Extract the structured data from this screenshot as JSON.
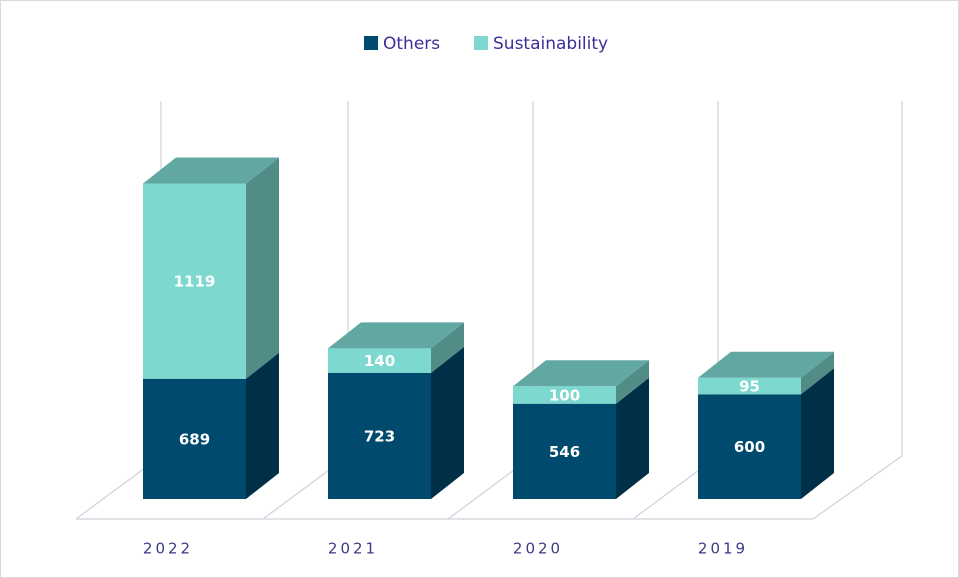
{
  "chart_data": {
    "type": "bar3d_stacked",
    "categories": [
      "2022",
      "2021",
      "2020",
      "2019"
    ],
    "series": [
      {
        "name": "Others",
        "color": "#004a6e",
        "values": [
          689,
          723,
          546,
          600
        ]
      },
      {
        "name": "Sustainability",
        "color": "#7dd8d0",
        "values": [
          1119,
          140,
          100,
          95
        ]
      }
    ],
    "legend": "top"
  }
}
